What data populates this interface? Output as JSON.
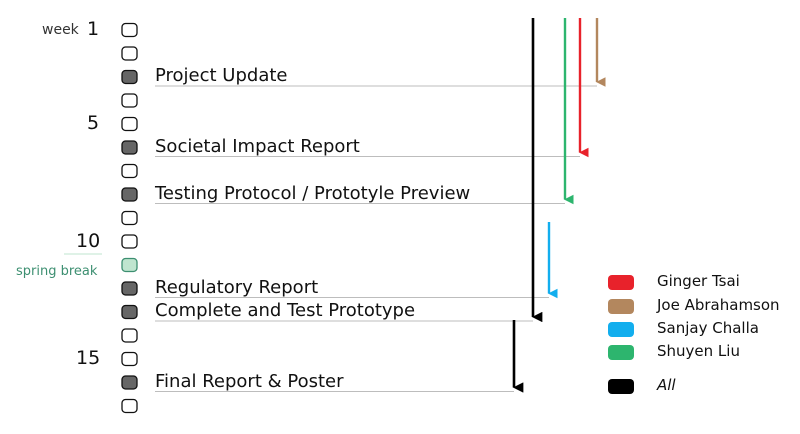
{
  "timeline": {
    "week_word": "week",
    "week_labels": [
      {
        "week": 1,
        "label": "1"
      },
      {
        "week": 5,
        "label": "5"
      },
      {
        "week": 10,
        "label": "10"
      },
      {
        "week": 15,
        "label": "15"
      }
    ],
    "break_label": "spring break",
    "weeks": [
      {
        "week": 1,
        "state": "empty"
      },
      {
        "week": 2,
        "state": "empty"
      },
      {
        "week": 3,
        "state": "deliverable"
      },
      {
        "week": 4,
        "state": "empty"
      },
      {
        "week": 5,
        "state": "empty"
      },
      {
        "week": 6,
        "state": "deliverable"
      },
      {
        "week": 7,
        "state": "empty"
      },
      {
        "week": 8,
        "state": "deliverable"
      },
      {
        "week": 9,
        "state": "empty"
      },
      {
        "week": 10,
        "state": "empty"
      },
      {
        "week": 11,
        "state": "break"
      },
      {
        "week": 12,
        "state": "deliverable"
      },
      {
        "week": 13,
        "state": "deliverable"
      },
      {
        "week": 14,
        "state": "empty"
      },
      {
        "week": 15,
        "state": "empty"
      },
      {
        "week": 16,
        "state": "deliverable"
      },
      {
        "week": 17,
        "state": "empty"
      }
    ]
  },
  "milestones": [
    {
      "label": "Project Update",
      "week": 3
    },
    {
      "label": "Societal Impact Report",
      "week": 6
    },
    {
      "label": "Testing Protocol / Prototyle Preview",
      "week": 8
    },
    {
      "label": "Regulatory Report",
      "week": 12
    },
    {
      "label": "Complete and Test Prototype",
      "week": 13
    },
    {
      "label": "Final Report & Poster",
      "week": 16
    }
  ],
  "assignments": [
    {
      "owner": "Joe Abrahamson",
      "from_week": 1,
      "to_week": 3
    },
    {
      "owner": "Ginger Tsai",
      "from_week": 1,
      "to_week": 6
    },
    {
      "owner": "Shuyen Liu",
      "from_week": 1,
      "to_week": 8
    },
    {
      "owner": "Sanjay Challa",
      "from_week": 10,
      "to_week": 12
    },
    {
      "owner": "All",
      "from_week": 1,
      "to_week": 13
    },
    {
      "owner": "All",
      "from_week": 13,
      "to_week": 16
    }
  ],
  "legend": [
    {
      "name": "Ginger Tsai",
      "color": "#e8222b"
    },
    {
      "name": "Joe Abrahamson",
      "color": "#b3875e"
    },
    {
      "name": "Sanjay Challa",
      "color": "#12aeee"
    },
    {
      "name": "Shuyen Liu",
      "color": "#2db56e"
    },
    {
      "name": "All",
      "color": "#000000",
      "italic": true
    }
  ],
  "colors": {
    "box_empty_fill": "#ffffff",
    "box_deliverable_fill": "#666666",
    "box_break_fill": "#bfe5cf",
    "box_break_stroke": "#3d8f71",
    "connector_line": "#bdbdbd"
  }
}
